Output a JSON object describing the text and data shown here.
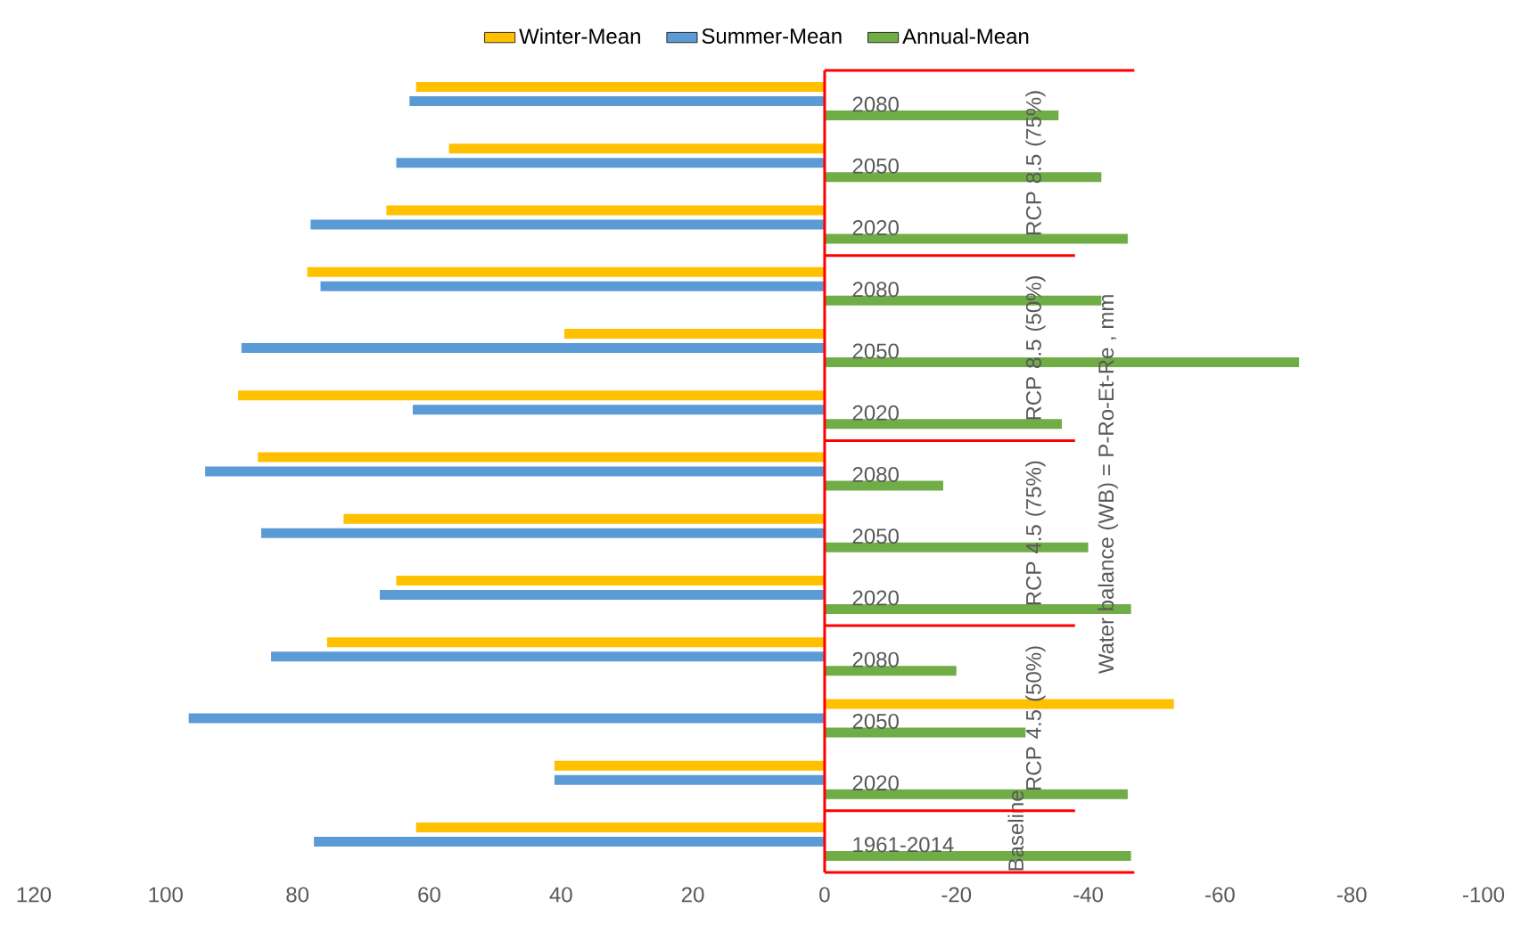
{
  "chart_data": {
    "type": "bar",
    "orientation": "horizontal",
    "ylabel": "Water balance (WB) = P-Ro-Et-Re , mm",
    "categories": [
      "2080",
      "2050",
      "2020",
      "2080",
      "2050",
      "2020",
      "2080",
      "2050",
      "2020",
      "2080",
      "2050",
      "2020",
      "1961-2014"
    ],
    "series": [
      {
        "name": "Winter-Mean",
        "color": "#ffc000",
        "values": [
          62,
          57,
          66.5,
          78.5,
          39.5,
          89,
          86,
          73,
          65,
          75.5,
          -53,
          41,
          62
        ]
      },
      {
        "name": "Summer-Mean",
        "color": "#5b9bd5",
        "values": [
          63,
          65,
          78,
          76.5,
          88.5,
          62.5,
          94,
          85.5,
          67.5,
          84,
          96.5,
          41,
          77.5
        ]
      },
      {
        "name": "Annual-Mean",
        "color": "#70ad47",
        "values": [
          -35.5,
          -42,
          -46,
          -42,
          -72,
          -36,
          -18,
          -40,
          -46.5,
          -20,
          -30.5,
          -46,
          -46.5
        ]
      }
    ],
    "xlim": [
      120,
      -100
    ],
    "xticks": [
      120,
      100,
      80,
      60,
      40,
      20,
      0,
      -20,
      -40,
      -60,
      -80,
      -100
    ],
    "annotations": [
      "RCP 8.5 (75%)",
      "RCP 8.5 (50%)",
      "RCP 4.5 (75%)",
      "RCP 4.5 (50%)",
      "Baseline"
    ],
    "legend": "top",
    "grid": false
  }
}
